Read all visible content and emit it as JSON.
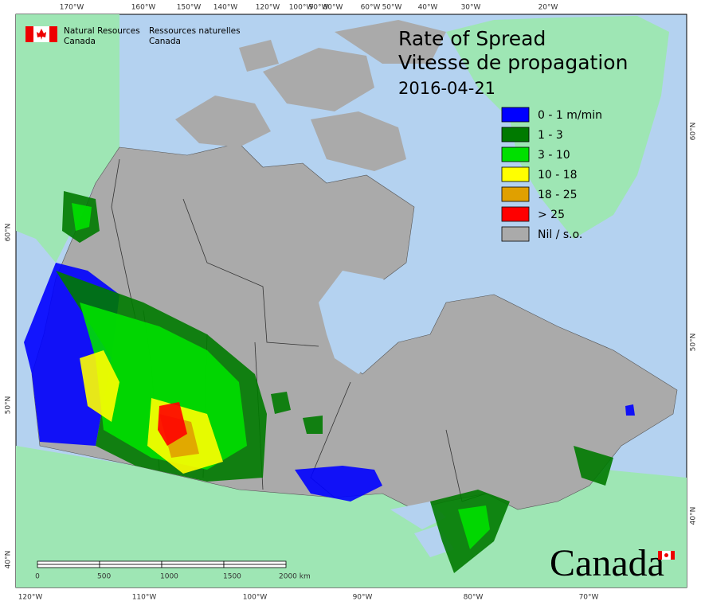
{
  "header": {
    "english": [
      "Natural Resources",
      "Canada"
    ],
    "french": [
      "Ressources naturelles",
      "Canada"
    ]
  },
  "title": {
    "line1": "Rate of Spread",
    "line2": "Vitesse de propagation",
    "date": "2016-04-21"
  },
  "legend": {
    "items": [
      {
        "label": "0 - 1 m/min",
        "color": "#0000ff"
      },
      {
        "label": "1 - 3",
        "color": "#007a00"
      },
      {
        "label": "3 - 10",
        "color": "#00e000"
      },
      {
        "label": "10 - 18",
        "color": "#ffff00"
      },
      {
        "label": "18 - 25",
        "color": "#e0a000"
      },
      {
        "label": "> 25",
        "color": "#ff0000"
      },
      {
        "label": "Nil / s.o.",
        "color": "#aaaaaa"
      }
    ]
  },
  "graticule": {
    "top": [
      "170°W",
      "160°W",
      "150°W",
      "140°W",
      "120°W",
      "100°W",
      "90°W",
      "80°W",
      "60°W",
      "50°W",
      "40°W",
      "30°W",
      "20°W"
    ],
    "bottom": [
      "120°W",
      "110°W",
      "100°W",
      "90°W",
      "80°W",
      "70°W"
    ],
    "left": [
      "60°N",
      "50°N",
      "40°N"
    ],
    "right": [
      "60°N",
      "50°N",
      "40°N"
    ]
  },
  "scale_bar": {
    "labels": [
      "0",
      "500",
      "1000",
      "1500",
      "2000  km"
    ]
  },
  "wordmark": "Canada"
}
